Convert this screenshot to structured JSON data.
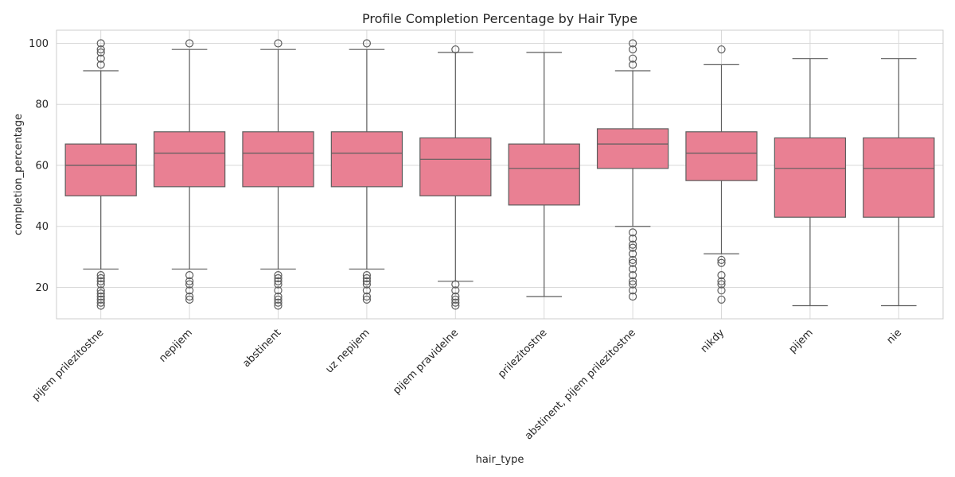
{
  "chart_data": {
    "type": "box",
    "title": "Profile Completion Percentage by Hair Type",
    "xlabel": "hair_type",
    "ylabel": "completion_percentage",
    "ylim": [
      9.7,
      104.3
    ],
    "yticks": [
      20,
      40,
      60,
      80,
      100
    ],
    "grid": true,
    "box_color": "#e98093",
    "line_color": "#5e5e5e",
    "categories": [
      "pijem prilezitostne",
      "nepijem",
      "abstinent",
      "uz nepijem",
      "pijem pravidelne",
      "prilezitostne",
      "abstinent, pijem prilezitostne",
      "nikdy",
      "pijem",
      "nie"
    ],
    "boxes": [
      {
        "whisker_low": 26,
        "q1": 50,
        "median": 60,
        "q3": 67,
        "whisker_high": 91,
        "outliers": [
          14,
          15,
          16,
          17,
          18,
          19,
          21,
          22,
          23,
          24,
          93,
          95,
          97,
          98,
          100
        ]
      },
      {
        "whisker_low": 26,
        "q1": 53,
        "median": 64,
        "q3": 71,
        "whisker_high": 98,
        "outliers": [
          16,
          17,
          19,
          21,
          22,
          24,
          100
        ]
      },
      {
        "whisker_low": 26,
        "q1": 53,
        "median": 64,
        "q3": 71,
        "whisker_high": 98,
        "outliers": [
          14,
          15,
          16,
          17,
          19,
          21,
          22,
          23,
          24,
          100
        ]
      },
      {
        "whisker_low": 26,
        "q1": 53,
        "median": 64,
        "q3": 71,
        "whisker_high": 98,
        "outliers": [
          16,
          17,
          19,
          21,
          22,
          23,
          24,
          100
        ]
      },
      {
        "whisker_low": 22,
        "q1": 50,
        "median": 62,
        "q3": 69,
        "whisker_high": 97,
        "outliers": [
          14,
          15,
          16,
          17,
          19,
          21,
          98
        ]
      },
      {
        "whisker_low": 17,
        "q1": 47,
        "median": 59,
        "q3": 67,
        "whisker_high": 97,
        "outliers": []
      },
      {
        "whisker_low": 40,
        "q1": 59,
        "median": 67,
        "q3": 72,
        "whisker_high": 91,
        "outliers": [
          17,
          19,
          21,
          22,
          24,
          26,
          28,
          29,
          31,
          33,
          34,
          36,
          38,
          93,
          95,
          98,
          100
        ]
      },
      {
        "whisker_low": 31,
        "q1": 55,
        "median": 64,
        "q3": 71,
        "whisker_high": 93,
        "outliers": [
          16,
          19,
          21,
          22,
          24,
          28,
          29,
          98
        ]
      },
      {
        "whisker_low": 14,
        "q1": 43,
        "median": 59,
        "q3": 69,
        "whisker_high": 95,
        "outliers": []
      },
      {
        "whisker_low": 14,
        "q1": 43,
        "median": 59,
        "q3": 69,
        "whisker_high": 95,
        "outliers": []
      }
    ]
  }
}
